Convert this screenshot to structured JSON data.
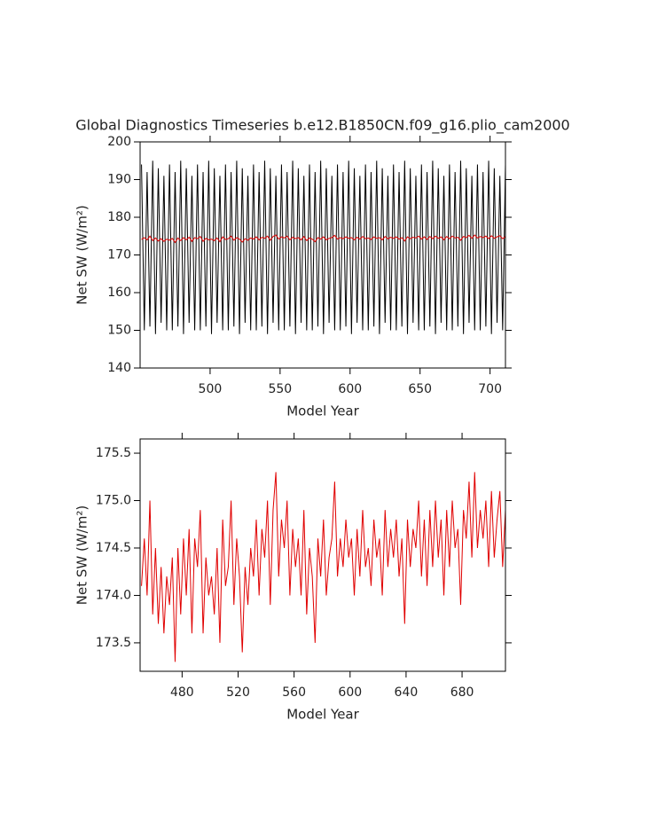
{
  "chart_data": [
    {
      "type": "line",
      "title": "Global Diagnostics Timeseries b.e12.B1850CN.f09_g16.plio_cam2000",
      "xlabel": "Model Year",
      "ylabel": "Net SW (W/m²)",
      "xlim": [
        450,
        711
      ],
      "ylim": [
        140,
        200
      ],
      "xticks": [
        500,
        550,
        600,
        650,
        700
      ],
      "yticks": [
        140,
        150,
        160,
        170,
        180,
        190,
        200
      ],
      "x": [
        451,
        453,
        455,
        457,
        459,
        461,
        463,
        465,
        467,
        469,
        471,
        473,
        475,
        477,
        479,
        481,
        483,
        485,
        487,
        489,
        491,
        493,
        495,
        497,
        499,
        501,
        503,
        505,
        507,
        509,
        511,
        513,
        515,
        517,
        519,
        521,
        523,
        525,
        527,
        529,
        531,
        533,
        535,
        537,
        539,
        541,
        543,
        545,
        547,
        549,
        551,
        553,
        555,
        557,
        559,
        561,
        563,
        565,
        567,
        569,
        571,
        573,
        575,
        577,
        579,
        581,
        583,
        585,
        587,
        589,
        591,
        593,
        595,
        597,
        599,
        601,
        603,
        605,
        607,
        609,
        611,
        613,
        615,
        617,
        619,
        621,
        623,
        625,
        627,
        629,
        631,
        633,
        635,
        637,
        639,
        641,
        643,
        645,
        647,
        649,
        651,
        653,
        655,
        657,
        659,
        661,
        663,
        665,
        667,
        669,
        671,
        673,
        675,
        677,
        679,
        681,
        683,
        685,
        687,
        689,
        691,
        693,
        695,
        697,
        699,
        701,
        703,
        705,
        707,
        709,
        711
      ],
      "series": [
        {
          "color": "#000000",
          "values": [
            194,
            150,
            192,
            151,
            195,
            149,
            193,
            152,
            191,
            150,
            194,
            150,
            192,
            151,
            195,
            149,
            193,
            152,
            191,
            150,
            194,
            150,
            192,
            151,
            195,
            149,
            193,
            152,
            191,
            150,
            194,
            150,
            192,
            151,
            195,
            149,
            193,
            152,
            191,
            150,
            194,
            150,
            192,
            151,
            195,
            149,
            193,
            152,
            191,
            150,
            194,
            150,
            192,
            151,
            195,
            149,
            193,
            152,
            191,
            150,
            194,
            150,
            192,
            151,
            195,
            149,
            193,
            152,
            191,
            150,
            194,
            150,
            192,
            151,
            195,
            149,
            193,
            152,
            191,
            150,
            194,
            150,
            192,
            151,
            195,
            149,
            193,
            152,
            191,
            150,
            194,
            150,
            192,
            151,
            195,
            149,
            193,
            152,
            191,
            150,
            194,
            150,
            192,
            151,
            195,
            149,
            193,
            152,
            191,
            150,
            194,
            150,
            192,
            151,
            195,
            149,
            193,
            152,
            191,
            150,
            194,
            150,
            192,
            151,
            195,
            149,
            193,
            152,
            191,
            150,
            194
          ]
        },
        {
          "color": "#e00000",
          "values": [
            174.1,
            174.6,
            174.0,
            175.0,
            173.8,
            174.5,
            173.7,
            174.3,
            173.6,
            174.2,
            173.9,
            174.4,
            173.3,
            174.5,
            173.8,
            174.6,
            174.0,
            174.7,
            173.6,
            174.6,
            174.3,
            174.9,
            173.6,
            174.4,
            174.0,
            174.2,
            173.8,
            174.5,
            173.5,
            174.8,
            174.1,
            174.3,
            175.0,
            173.9,
            174.6,
            174.2,
            173.4,
            174.3,
            173.9,
            174.5,
            174.2,
            174.8,
            174.0,
            174.7,
            174.4,
            175.0,
            173.9,
            174.9,
            175.3,
            174.2,
            174.8,
            174.5,
            175.0,
            174.0,
            174.7,
            174.3,
            174.6,
            174.0,
            174.9,
            173.8,
            174.5,
            174.2,
            173.5,
            174.6,
            174.2,
            174.8,
            174.0,
            174.4,
            174.6,
            175.2,
            174.2,
            174.6,
            174.3,
            174.8,
            174.4,
            174.6,
            174.0,
            174.7,
            174.2,
            174.9,
            174.3,
            174.5,
            174.1,
            174.8,
            174.4,
            174.6,
            174.0,
            174.9,
            174.3,
            174.7,
            174.4,
            174.8,
            174.2,
            174.6,
            173.7,
            174.8,
            174.3,
            174.7,
            174.5,
            175.0,
            174.2,
            174.8,
            174.1,
            174.9,
            174.3,
            175.0,
            174.4,
            174.8,
            174.0,
            174.9,
            174.3,
            175.0,
            174.5,
            174.7,
            173.9,
            174.9,
            174.6,
            175.2,
            174.4,
            175.3,
            174.5,
            174.9,
            174.6,
            175.0,
            174.3,
            175.1,
            174.4,
            174.8,
            175.1,
            174.3,
            174.9
          ]
        }
      ]
    },
    {
      "type": "line",
      "xlabel": "Model Year",
      "ylabel": "Net SW (W/m²)",
      "xlim": [
        450,
        711
      ],
      "ylim": [
        173.2,
        175.65
      ],
      "xticks": [
        480,
        520,
        560,
        600,
        640,
        680
      ],
      "yticks": [
        173.5,
        {
          "value": 174,
          "label": "174.0"
        },
        174.5,
        {
          "value": 175,
          "label": "175.0"
        },
        175.5
      ],
      "x": [
        451,
        453,
        455,
        457,
        459,
        461,
        463,
        465,
        467,
        469,
        471,
        473,
        475,
        477,
        479,
        481,
        483,
        485,
        487,
        489,
        491,
        493,
        495,
        497,
        499,
        501,
        503,
        505,
        507,
        509,
        511,
        513,
        515,
        517,
        519,
        521,
        523,
        525,
        527,
        529,
        531,
        533,
        535,
        537,
        539,
        541,
        543,
        545,
        547,
        549,
        551,
        553,
        555,
        557,
        559,
        561,
        563,
        565,
        567,
        569,
        571,
        573,
        575,
        577,
        579,
        581,
        583,
        585,
        587,
        589,
        591,
        593,
        595,
        597,
        599,
        601,
        603,
        605,
        607,
        609,
        611,
        613,
        615,
        617,
        619,
        621,
        623,
        625,
        627,
        629,
        631,
        633,
        635,
        637,
        639,
        641,
        643,
        645,
        647,
        649,
        651,
        653,
        655,
        657,
        659,
        661,
        663,
        665,
        667,
        669,
        671,
        673,
        675,
        677,
        679,
        681,
        683,
        685,
        687,
        689,
        691,
        693,
        695,
        697,
        699,
        701,
        703,
        705,
        707,
        709,
        711
      ],
      "series": [
        {
          "color": "#e00000",
          "values": [
            174.1,
            174.6,
            174.0,
            175.0,
            173.8,
            174.5,
            173.7,
            174.3,
            173.6,
            174.2,
            173.9,
            174.4,
            173.3,
            174.5,
            173.8,
            174.6,
            174.0,
            174.7,
            173.6,
            174.6,
            174.3,
            174.9,
            173.6,
            174.4,
            174.0,
            174.2,
            173.8,
            174.5,
            173.5,
            174.8,
            174.1,
            174.3,
            175.0,
            173.9,
            174.6,
            174.2,
            173.4,
            174.3,
            173.9,
            174.5,
            174.2,
            174.8,
            174.0,
            174.7,
            174.4,
            175.0,
            173.9,
            174.9,
            175.3,
            174.2,
            174.8,
            174.5,
            175.0,
            174.0,
            174.7,
            174.3,
            174.6,
            174.0,
            174.9,
            173.8,
            174.5,
            174.2,
            173.5,
            174.6,
            174.2,
            174.8,
            174.0,
            174.4,
            174.6,
            175.2,
            174.2,
            174.6,
            174.3,
            174.8,
            174.4,
            174.6,
            174.0,
            174.7,
            174.2,
            174.9,
            174.3,
            174.5,
            174.1,
            174.8,
            174.4,
            174.6,
            174.0,
            174.9,
            174.3,
            174.7,
            174.4,
            174.8,
            174.2,
            174.6,
            173.7,
            174.8,
            174.3,
            174.7,
            174.5,
            175.0,
            174.2,
            174.8,
            174.1,
            174.9,
            174.3,
            175.0,
            174.4,
            174.8,
            174.0,
            174.9,
            174.3,
            175.0,
            174.5,
            174.7,
            173.9,
            174.9,
            174.6,
            175.2,
            174.4,
            175.3,
            174.5,
            174.9,
            174.6,
            175.0,
            174.3,
            175.1,
            174.4,
            174.8,
            175.1,
            174.3,
            174.9
          ]
        }
      ]
    }
  ]
}
